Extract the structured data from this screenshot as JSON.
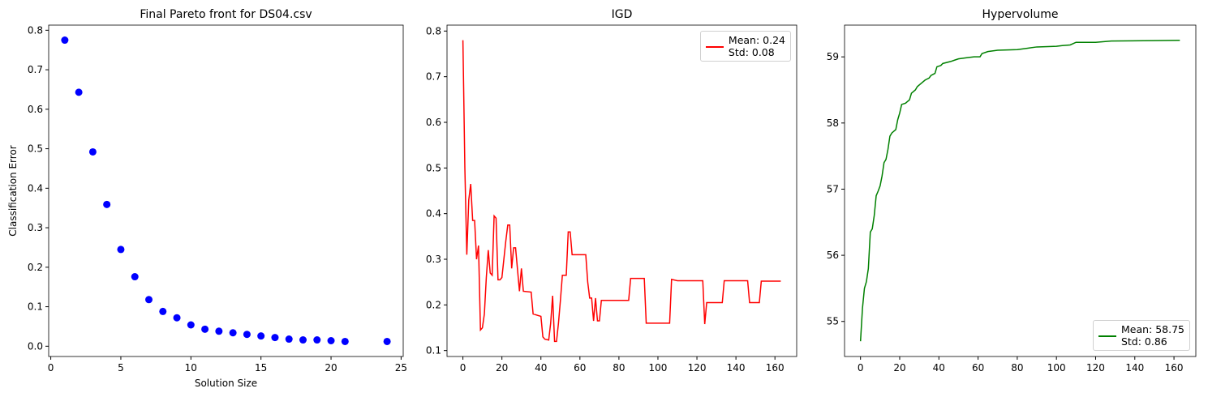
{
  "chart_data": [
    {
      "type": "scatter",
      "title": "Final Pareto front for DS04.csv",
      "x_label": "Solution Size",
      "y_label": "Classification Error",
      "x": [
        1,
        2,
        3,
        4,
        5,
        6,
        7,
        8,
        9,
        10,
        11,
        12,
        13,
        14,
        15,
        16,
        17,
        18,
        19,
        20,
        21,
        24
      ],
      "values": [
        0.775,
        0.643,
        0.492,
        0.359,
        0.245,
        0.176,
        0.118,
        0.088,
        0.072,
        0.054,
        0.043,
        0.038,
        0.034,
        0.03,
        0.026,
        0.022,
        0.018,
        0.016,
        0.016,
        0.014,
        0.012,
        0.012
      ],
      "color": "#0000ff",
      "xlim": [
        -0.15,
        25.15
      ],
      "xticks": [
        0,
        5,
        10,
        15,
        20,
        25
      ],
      "ylim": [
        -0.026,
        0.813
      ],
      "yticks": [
        {
          "value": 0,
          "label": "0.0"
        },
        0.1,
        0.2,
        0.3,
        0.4,
        0.5,
        0.6,
        0.7,
        0.8
      ]
    },
    {
      "type": "line",
      "title": "IGD",
      "legend": "upper right",
      "x": [
        0,
        1,
        2,
        3,
        4,
        5,
        6,
        7,
        8,
        9,
        10,
        11,
        12,
        13,
        14,
        15,
        16,
        17,
        18,
        19,
        20,
        21,
        22,
        23,
        24,
        25,
        26,
        27,
        29,
        30,
        31,
        35,
        36,
        40,
        41,
        42,
        44,
        45,
        46,
        47,
        48,
        49,
        50,
        51,
        53,
        54,
        55,
        56,
        63,
        64,
        65,
        66,
        67,
        68,
        69,
        70,
        71,
        85,
        86,
        93,
        94,
        106,
        107,
        110,
        123,
        124,
        125,
        133,
        134,
        146,
        147,
        152,
        153,
        163
      ],
      "series": [
        {
          "name": "Mean: 0.24\nStd: 0.08",
          "color": "#ff0000",
          "values": [
            0.78,
            0.5,
            0.31,
            0.43,
            0.465,
            0.385,
            0.385,
            0.3,
            0.33,
            0.145,
            0.15,
            0.18,
            0.26,
            0.32,
            0.27,
            0.265,
            0.395,
            0.39,
            0.255,
            0.255,
            0.26,
            0.3,
            0.34,
            0.375,
            0.375,
            0.28,
            0.325,
            0.325,
            0.23,
            0.28,
            0.23,
            0.228,
            0.18,
            0.175,
            0.13,
            0.125,
            0.123,
            0.16,
            0.22,
            0.12,
            0.12,
            0.16,
            0.21,
            0.265,
            0.265,
            0.36,
            0.36,
            0.31,
            0.31,
            0.25,
            0.215,
            0.215,
            0.165,
            0.215,
            0.165,
            0.165,
            0.21,
            0.21,
            0.258,
            0.258,
            0.16,
            0.16,
            0.256,
            0.253,
            0.253,
            0.158,
            0.205,
            0.205,
            0.253,
            0.253,
            0.205,
            0.205,
            0.252,
            0.252
          ]
        }
      ],
      "xlim": [
        -8.15,
        171.15
      ],
      "xticks": [
        0,
        20,
        40,
        60,
        80,
        100,
        120,
        140,
        160
      ],
      "ylim": [
        0.087,
        0.813
      ],
      "yticks": [
        0.1,
        0.2,
        0.3,
        0.4,
        0.5,
        0.6,
        0.7,
        0.8
      ]
    },
    {
      "type": "line",
      "title": "Hypervolume",
      "legend": "lower right",
      "x": [
        0,
        1,
        2,
        3,
        4,
        5,
        6,
        7,
        8,
        9,
        10,
        11,
        12,
        13,
        14,
        15,
        16,
        18,
        19,
        20,
        21,
        23,
        25,
        26,
        28,
        29,
        31,
        33,
        35,
        36,
        38,
        39,
        41,
        42,
        46,
        48,
        50,
        55,
        58,
        61,
        62,
        65,
        70,
        80,
        85,
        90,
        100,
        103,
        107,
        110,
        120,
        128,
        150,
        163
      ],
      "series": [
        {
          "name": "Mean: 58.75\nStd: 0.86",
          "color": "#008000",
          "values": [
            54.7,
            55.2,
            55.5,
            55.6,
            55.8,
            56.35,
            56.4,
            56.6,
            56.9,
            56.97,
            57.05,
            57.2,
            57.4,
            57.45,
            57.6,
            57.8,
            57.85,
            57.9,
            58.05,
            58.15,
            58.28,
            58.3,
            58.35,
            58.45,
            58.5,
            58.55,
            58.6,
            58.65,
            58.68,
            58.72,
            58.75,
            58.85,
            58.87,
            58.9,
            58.93,
            58.95,
            58.97,
            58.99,
            59.0,
            59.0,
            59.05,
            59.08,
            59.1,
            59.11,
            59.13,
            59.15,
            59.16,
            59.17,
            59.18,
            59.22,
            59.22,
            59.24,
            59.245,
            59.25
          ]
        }
      ],
      "xlim": [
        -8.15,
        171.15
      ],
      "xticks": [
        0,
        20,
        40,
        60,
        80,
        100,
        120,
        140,
        160
      ],
      "ylim": [
        54.47,
        59.48
      ],
      "yticks": [
        55,
        56,
        57,
        58,
        59
      ]
    }
  ]
}
